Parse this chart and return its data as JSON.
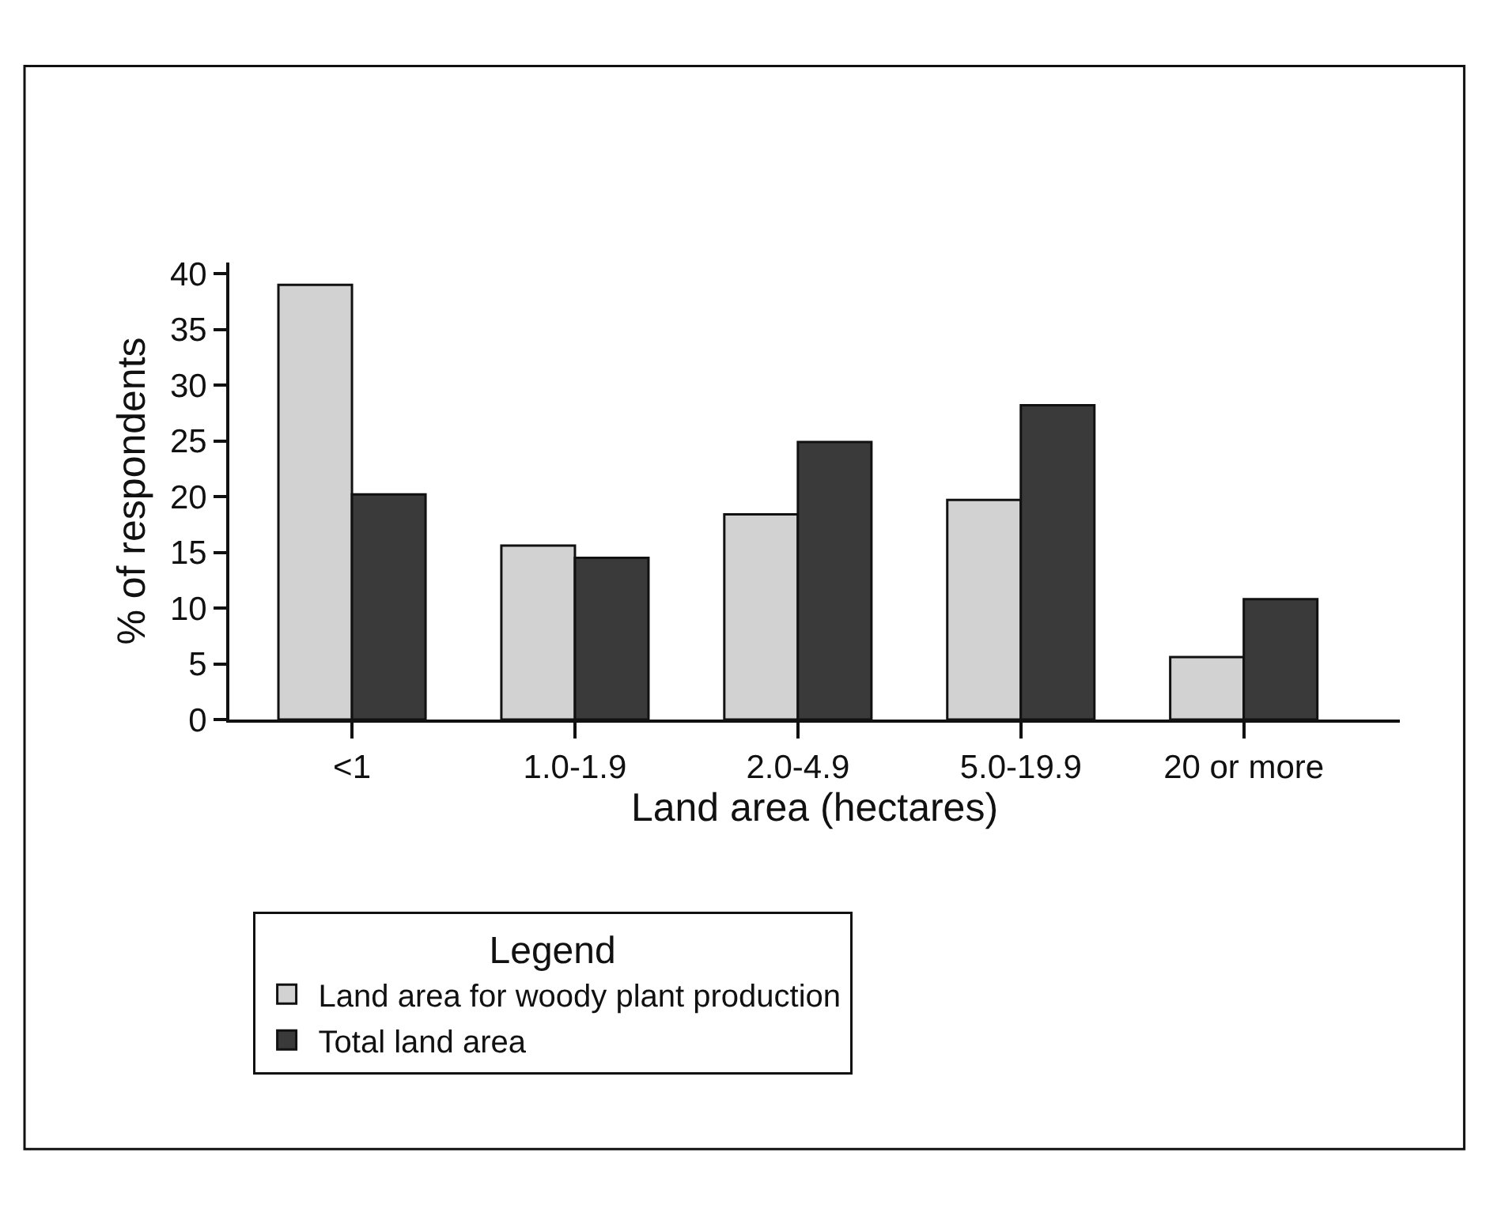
{
  "chart_data": {
    "type": "bar",
    "xlabel": "Land area (hectares)",
    "ylabel": "% of respondents",
    "legend_title": "Legend",
    "categories": [
      "<1",
      "1.0-1.9",
      "2.0-4.9",
      "5.0-19.9",
      "20 or more"
    ],
    "series": [
      {
        "name": "Land area for woody plant production",
        "color": "#d2d2d2",
        "values": [
          39,
          15.6,
          18.4,
          19.7,
          5.6
        ]
      },
      {
        "name": "Total land area",
        "color": "#3a3a3a",
        "values": [
          20.2,
          14.5,
          24.9,
          28.2,
          10.8
        ]
      }
    ],
    "ylim": [
      0,
      41
    ],
    "yticks": [
      0,
      5,
      10,
      15,
      20,
      25,
      30,
      35,
      40
    ],
    "legend": "bottom"
  }
}
